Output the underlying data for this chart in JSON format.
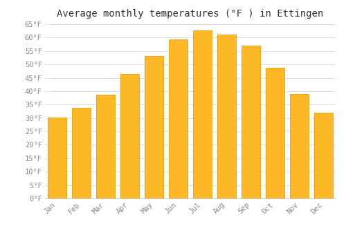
{
  "title": "Average monthly temperatures (°F ) in Ettingen",
  "months": [
    "Jan",
    "Feb",
    "Mar",
    "Apr",
    "May",
    "Jun",
    "Jul",
    "Aug",
    "Sep",
    "Oct",
    "Nov",
    "Dec"
  ],
  "values": [
    30.2,
    33.8,
    38.8,
    46.4,
    53.2,
    59.2,
    62.8,
    61.2,
    57.0,
    48.8,
    39.0,
    32.0
  ],
  "bar_color": "#FDB827",
  "bar_edge_color": "#E8A000",
  "ylim": [
    0,
    65
  ],
  "yticks": [
    0,
    5,
    10,
    15,
    20,
    25,
    30,
    35,
    40,
    45,
    50,
    55,
    60,
    65
  ],
  "background_color": "#ffffff",
  "grid_color": "#dddddd",
  "title_fontsize": 10,
  "tick_fontsize": 7.5,
  "font_family": "monospace"
}
